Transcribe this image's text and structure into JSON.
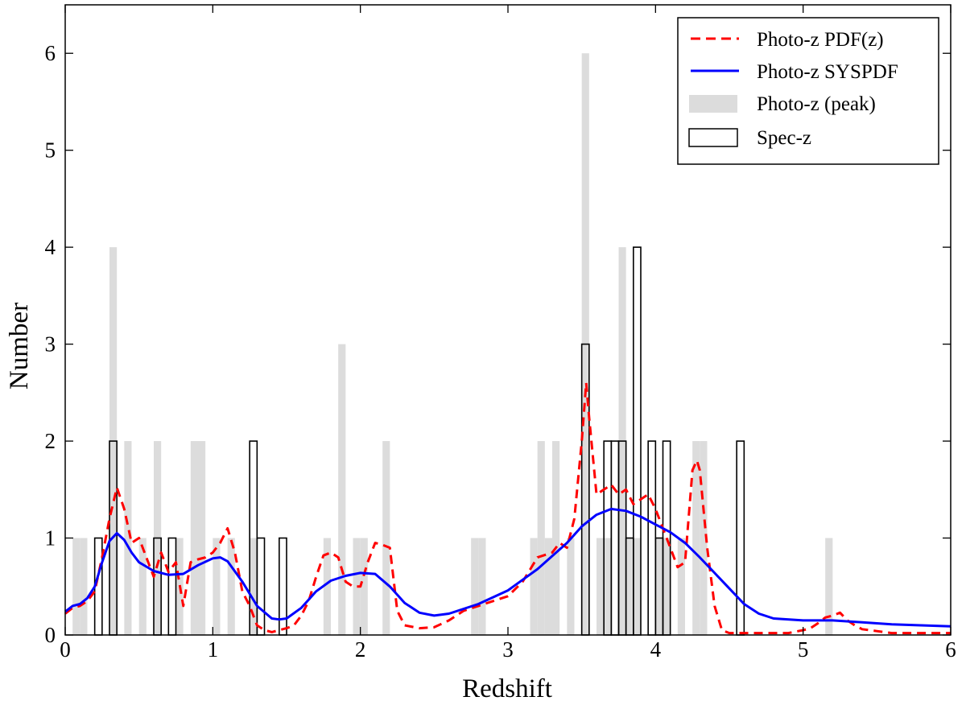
{
  "chart_data": {
    "type": "histogram+line",
    "xlabel": "Redshift",
    "ylabel": "Number",
    "xlim": [
      0,
      6
    ],
    "ylim": [
      0,
      6.5
    ],
    "xticks": [
      0,
      1,
      2,
      3,
      4,
      5,
      6
    ],
    "yticks": [
      0,
      1,
      2,
      3,
      4,
      5,
      6
    ],
    "bin_width": 0.05,
    "legend": {
      "placement": "top-right",
      "entries": [
        {
          "key": "pdf",
          "label": "Photo-z PDF(z)",
          "style": "dashed-line",
          "color": "#ff0000"
        },
        {
          "key": "syspdf",
          "label": "Photo-z SYSPDF",
          "style": "solid-line",
          "color": "#0000ff"
        },
        {
          "key": "peak",
          "label": "Photo-z (peak)",
          "style": "filled-bar",
          "color": "#dcdcdc"
        },
        {
          "key": "specz",
          "label": "Spec-z",
          "style": "outline-bar",
          "color": "#000000"
        }
      ]
    },
    "series": [
      {
        "name": "Photo-z (peak)",
        "kind": "histogram",
        "bins": [
          {
            "x": 0.05,
            "count": 1
          },
          {
            "x": 0.1,
            "count": 1
          },
          {
            "x": 0.3,
            "count": 4
          },
          {
            "x": 0.4,
            "count": 2
          },
          {
            "x": 0.5,
            "count": 1
          },
          {
            "x": 0.6,
            "count": 2
          },
          {
            "x": 0.75,
            "count": 1
          },
          {
            "x": 0.85,
            "count": 2
          },
          {
            "x": 0.9,
            "count": 2
          },
          {
            "x": 1.0,
            "count": 1
          },
          {
            "x": 1.1,
            "count": 1
          },
          {
            "x": 1.25,
            "count": 1
          },
          {
            "x": 1.75,
            "count": 1
          },
          {
            "x": 1.85,
            "count": 3
          },
          {
            "x": 1.95,
            "count": 1
          },
          {
            "x": 2.0,
            "count": 1
          },
          {
            "x": 2.15,
            "count": 2
          },
          {
            "x": 2.75,
            "count": 1
          },
          {
            "x": 2.8,
            "count": 1
          },
          {
            "x": 3.15,
            "count": 1
          },
          {
            "x": 3.2,
            "count": 2
          },
          {
            "x": 3.25,
            "count": 1
          },
          {
            "x": 3.3,
            "count": 2
          },
          {
            "x": 3.4,
            "count": 1
          },
          {
            "x": 3.5,
            "count": 6
          },
          {
            "x": 3.6,
            "count": 1
          },
          {
            "x": 3.65,
            "count": 1
          },
          {
            "x": 3.75,
            "count": 4
          },
          {
            "x": 3.8,
            "count": 1
          },
          {
            "x": 3.85,
            "count": 1
          },
          {
            "x": 4.0,
            "count": 1
          },
          {
            "x": 4.05,
            "count": 1
          },
          {
            "x": 4.15,
            "count": 1
          },
          {
            "x": 4.25,
            "count": 2
          },
          {
            "x": 4.3,
            "count": 2
          },
          {
            "x": 5.15,
            "count": 1
          }
        ]
      },
      {
        "name": "Spec-z",
        "kind": "histogram",
        "bins": [
          {
            "x": 0.2,
            "count": 1
          },
          {
            "x": 0.3,
            "count": 2
          },
          {
            "x": 0.6,
            "count": 1
          },
          {
            "x": 0.7,
            "count": 1
          },
          {
            "x": 1.25,
            "count": 2
          },
          {
            "x": 1.3,
            "count": 1
          },
          {
            "x": 1.45,
            "count": 1
          },
          {
            "x": 3.5,
            "count": 3
          },
          {
            "x": 3.65,
            "count": 2
          },
          {
            "x": 3.7,
            "count": 2
          },
          {
            "x": 3.75,
            "count": 2
          },
          {
            "x": 3.8,
            "count": 1
          },
          {
            "x": 3.85,
            "count": 4
          },
          {
            "x": 3.95,
            "count": 2
          },
          {
            "x": 4.0,
            "count": 1
          },
          {
            "x": 4.05,
            "count": 2
          },
          {
            "x": 4.55,
            "count": 2
          }
        ]
      },
      {
        "name": "Photo-z PDF(z)",
        "kind": "line",
        "x": [
          0,
          0.05,
          0.1,
          0.15,
          0.2,
          0.25,
          0.3,
          0.35,
          0.4,
          0.45,
          0.5,
          0.55,
          0.6,
          0.65,
          0.7,
          0.75,
          0.8,
          0.85,
          0.9,
          0.95,
          1.0,
          1.05,
          1.1,
          1.15,
          1.2,
          1.25,
          1.3,
          1.35,
          1.4,
          1.45,
          1.5,
          1.55,
          1.6,
          1.65,
          1.7,
          1.75,
          1.8,
          1.85,
          1.9,
          1.95,
          2.0,
          2.05,
          2.1,
          2.15,
          2.2,
          2.25,
          2.3,
          2.4,
          2.5,
          2.6,
          2.7,
          2.8,
          2.9,
          3.0,
          3.1,
          3.2,
          3.3,
          3.35,
          3.4,
          3.45,
          3.5,
          3.53,
          3.55,
          3.6,
          3.65,
          3.7,
          3.75,
          3.8,
          3.85,
          3.9,
          3.95,
          4.0,
          4.05,
          4.1,
          4.15,
          4.2,
          4.25,
          4.28,
          4.3,
          4.35,
          4.4,
          4.45,
          4.5,
          4.6,
          4.7,
          4.8,
          4.9,
          5.0,
          5.05,
          5.1,
          5.15,
          5.2,
          5.25,
          5.3,
          5.35,
          5.4,
          5.5,
          5.6,
          5.8,
          6.0
        ],
        "y": [
          0.22,
          0.28,
          0.3,
          0.35,
          0.45,
          0.8,
          1.2,
          1.52,
          1.3,
          0.95,
          1.0,
          0.8,
          0.6,
          0.85,
          0.65,
          0.75,
          0.3,
          0.75,
          0.78,
          0.8,
          0.85,
          0.95,
          1.1,
          0.85,
          0.45,
          0.3,
          0.1,
          0.05,
          0.03,
          0.05,
          0.07,
          0.1,
          0.2,
          0.35,
          0.6,
          0.82,
          0.85,
          0.8,
          0.55,
          0.5,
          0.5,
          0.75,
          0.95,
          0.93,
          0.9,
          0.25,
          0.1,
          0.07,
          0.08,
          0.15,
          0.25,
          0.3,
          0.35,
          0.4,
          0.55,
          0.8,
          0.85,
          0.95,
          0.9,
          1.2,
          2.0,
          2.6,
          2.25,
          1.45,
          1.5,
          1.55,
          1.45,
          1.5,
          1.35,
          1.4,
          1.45,
          1.3,
          1.1,
          0.9,
          0.7,
          0.75,
          1.7,
          1.8,
          1.7,
          0.9,
          0.3,
          0.05,
          0.02,
          0.02,
          0.02,
          0.02,
          0.02,
          0.05,
          0.07,
          0.12,
          0.18,
          0.2,
          0.23,
          0.15,
          0.1,
          0.06,
          0.04,
          0.02,
          0.02,
          0.02
        ]
      },
      {
        "name": "Photo-z SYSPDF",
        "kind": "line",
        "x": [
          0,
          0.05,
          0.1,
          0.15,
          0.2,
          0.25,
          0.3,
          0.35,
          0.4,
          0.45,
          0.5,
          0.6,
          0.7,
          0.8,
          0.9,
          1.0,
          1.05,
          1.1,
          1.2,
          1.3,
          1.4,
          1.45,
          1.5,
          1.6,
          1.7,
          1.8,
          1.9,
          2.0,
          2.1,
          2.2,
          2.3,
          2.4,
          2.5,
          2.6,
          2.8,
          3.0,
          3.2,
          3.4,
          3.5,
          3.6,
          3.7,
          3.8,
          3.9,
          4.0,
          4.1,
          4.2,
          4.3,
          4.4,
          4.5,
          4.6,
          4.7,
          4.8,
          5.0,
          5.2,
          5.4,
          5.6,
          5.8,
          6.0
        ],
        "y": [
          0.24,
          0.3,
          0.32,
          0.38,
          0.5,
          0.75,
          0.97,
          1.05,
          0.98,
          0.85,
          0.75,
          0.66,
          0.62,
          0.63,
          0.72,
          0.79,
          0.8,
          0.76,
          0.55,
          0.3,
          0.17,
          0.16,
          0.17,
          0.28,
          0.45,
          0.56,
          0.61,
          0.64,
          0.63,
          0.5,
          0.33,
          0.23,
          0.2,
          0.22,
          0.32,
          0.46,
          0.68,
          0.95,
          1.12,
          1.24,
          1.3,
          1.28,
          1.22,
          1.14,
          1.06,
          0.95,
          0.8,
          0.64,
          0.48,
          0.32,
          0.22,
          0.17,
          0.15,
          0.15,
          0.13,
          0.11,
          0.1,
          0.09
        ]
      }
    ]
  }
}
